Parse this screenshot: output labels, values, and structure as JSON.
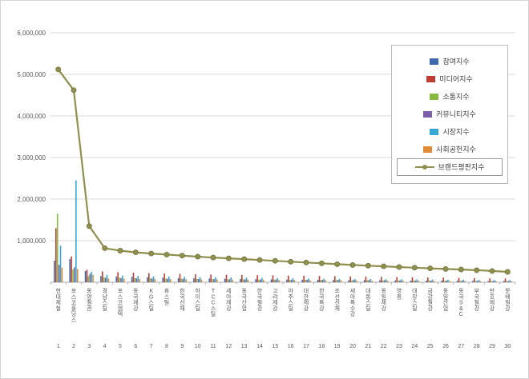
{
  "frame": {
    "background": "#ffffff",
    "border_color": "#d4d4d4"
  },
  "chart_data": {
    "type": "bar",
    "subtype": "grouped-bar-with-line-overlay",
    "title": "",
    "xlabel": "",
    "ylabel": "",
    "grid": true,
    "legend_position": "top-right",
    "categories": [
      "현대제철",
      "포스코홀딩스",
      "동양철관",
      "경남스틸",
      "포스코엠텍",
      "동국제강",
      "KG스틸",
      "휴스틸",
      "한국선재",
      "하이스틸",
      "TCC스틸",
      "세아제강",
      "동국산업",
      "한국철강",
      "고려제강",
      "아주스틸",
      "대한제강",
      "한국특강",
      "조선선재",
      "세아특수강",
      "대동스틸",
      "동일제강",
      "영흥",
      "대창스틸",
      "금강철강",
      "동일산업",
      "동국S&C",
      "부국철강",
      "만호제강",
      "문배철강"
    ],
    "ranks": [
      "1",
      "2",
      "3",
      "4",
      "5",
      "6",
      "7",
      "8",
      "9",
      "10",
      "11",
      "12",
      "13",
      "14",
      "15",
      "16",
      "17",
      "18",
      "19",
      "20",
      "21",
      "22",
      "23",
      "24",
      "25",
      "26",
      "27",
      "28",
      "29",
      "30"
    ],
    "y_axis": {
      "min": 0,
      "max": 6000000,
      "step": 1000000,
      "tick_labels": [
        "1,000,000",
        "2,000,000",
        "3,000,000",
        "4,000,000",
        "5,000,000",
        "6,000,000"
      ]
    },
    "series": [
      {
        "name": "참여지수",
        "type": "bar",
        "color": "#3F69AD",
        "values": [
          520000,
          560000,
          270000,
          150000,
          140000,
          130000,
          120000,
          110000,
          100000,
          95000,
          90000,
          85000,
          80000,
          75000,
          70000,
          65000,
          62000,
          58000,
          55000,
          52000,
          50000,
          48000,
          45000,
          42000,
          40000,
          38000,
          35000,
          32000,
          30000,
          28000
        ]
      },
      {
        "name": "미디어지수",
        "type": "bar",
        "color": "#BE3E35",
        "values": [
          1300000,
          620000,
          300000,
          260000,
          240000,
          230000,
          220000,
          210000,
          200000,
          190000,
          185000,
          180000,
          175000,
          170000,
          165000,
          160000,
          155000,
          150000,
          145000,
          140000,
          135000,
          130000,
          125000,
          120000,
          115000,
          110000,
          105000,
          100000,
          95000,
          90000
        ]
      },
      {
        "name": "소통지수",
        "type": "bar",
        "color": "#86BB40",
        "values": [
          1650000,
          310000,
          150000,
          120000,
          110000,
          100000,
          95000,
          90000,
          85000,
          80000,
          75000,
          70000,
          68000,
          65000,
          62000,
          60000,
          58000,
          55000,
          52000,
          50000,
          48000,
          45000,
          43000,
          40000,
          38000,
          36000,
          34000,
          32000,
          30000,
          28000
        ]
      },
      {
        "name": "커뮤니티지수",
        "type": "bar",
        "color": "#7B5EA7",
        "values": [
          420000,
          360000,
          200000,
          110000,
          100000,
          95000,
          90000,
          85000,
          80000,
          78000,
          75000,
          72000,
          70000,
          68000,
          65000,
          62000,
          60000,
          58000,
          55000,
          52000,
          50000,
          48000,
          45000,
          43000,
          40000,
          38000,
          36000,
          34000,
          32000,
          30000
        ]
      },
      {
        "name": "시장지수",
        "type": "bar",
        "color": "#35A8D5",
        "values": [
          880000,
          2450000,
          250000,
          180000,
          160000,
          150000,
          140000,
          135000,
          130000,
          125000,
          120000,
          115000,
          110000,
          105000,
          100000,
          95000,
          90000,
          85000,
          80000,
          78000,
          75000,
          72000,
          70000,
          68000,
          65000,
          62000,
          60000,
          58000,
          55000,
          52000
        ]
      },
      {
        "name": "사회공헌지수",
        "type": "bar",
        "color": "#E08B33",
        "values": [
          350000,
          320000,
          180000,
          90000,
          85000,
          80000,
          78000,
          75000,
          72000,
          70000,
          68000,
          65000,
          62000,
          60000,
          58000,
          55000,
          52000,
          50000,
          48000,
          45000,
          43000,
          40000,
          38000,
          36000,
          34000,
          32000,
          30000,
          28000,
          26000,
          24000
        ]
      },
      {
        "name": "브랜드평판지수",
        "type": "line",
        "color": "#90904E",
        "values": [
          5120000,
          4620000,
          1350000,
          820000,
          760000,
          720000,
          690000,
          665000,
          640000,
          615000,
          595000,
          575000,
          555000,
          535000,
          515000,
          495000,
          475000,
          455000,
          435000,
          415000,
          398000,
          382000,
          366000,
          350000,
          335000,
          320000,
          305000,
          290000,
          272000,
          250000
        ]
      }
    ]
  }
}
